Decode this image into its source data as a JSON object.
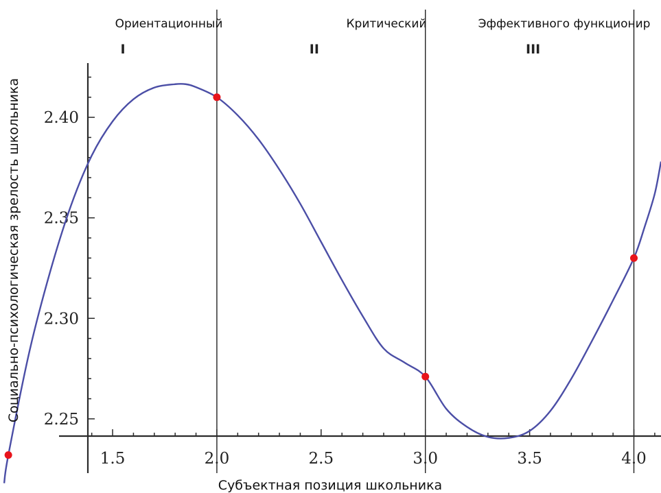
{
  "chart_data": {
    "type": "line",
    "title": "",
    "xlabel": "Субъектная позиция школьника",
    "ylabel": "Социально-психологическая зрелость школьника",
    "xlim": [
      0.96,
      4.13
    ],
    "ylim": [
      2.223,
      2.442
    ],
    "x_ticks": [
      1.5,
      2.0,
      2.5,
      3.0,
      3.5,
      4.0
    ],
    "x_tick_labels": [
      "1.5",
      "2.0",
      "2.5",
      "3.0",
      "3.5",
      "4.0"
    ],
    "y_ticks": [
      2.25,
      2.3,
      2.35,
      2.4
    ],
    "y_tick_labels": [
      "2.25",
      "2.30",
      "2.35",
      "2.40"
    ],
    "grid": false,
    "curve_color": "#4b4ea6",
    "point_color": "#e8141b",
    "series": [
      {
        "curve": {
          "x": [
            0.98,
            1.0,
            1.1,
            1.2,
            1.3,
            1.4,
            1.5,
            1.6,
            1.7,
            1.8,
            1.85,
            1.9,
            2.0,
            2.1,
            2.2,
            2.3,
            2.4,
            2.5,
            2.6,
            2.7,
            2.8,
            2.9,
            3.0,
            3.1,
            3.2,
            3.3,
            3.4,
            3.5,
            3.6,
            3.7,
            3.8,
            3.9,
            4.0,
            4.05,
            4.1,
            4.13
          ],
          "y": [
            2.218,
            2.232,
            2.283,
            2.323,
            2.356,
            2.381,
            2.398,
            2.409,
            2.4148,
            2.4165,
            2.4165,
            2.415,
            2.41,
            2.401,
            2.389,
            2.374,
            2.357,
            2.338,
            2.319,
            2.301,
            2.285,
            2.278,
            2.271,
            2.255,
            2.246,
            2.241,
            2.2405,
            2.244,
            2.254,
            2.27,
            2.289,
            2.309,
            2.33,
            2.345,
            2.362,
            2.378
          ]
        },
        "points": {
          "x": [
            1.0,
            2.0,
            3.0,
            4.0
          ],
          "y": [
            2.232,
            2.41,
            2.271,
            2.33
          ]
        }
      }
    ],
    "dividers": [
      2.0,
      3.0,
      4.0
    ],
    "zones": [
      {
        "name": "Ориентационный",
        "numeral": "I",
        "from": 1.0,
        "to": 2.0
      },
      {
        "name": "Критический",
        "numeral": "II",
        "from": 2.0,
        "to": 3.0
      },
      {
        "name": "Эффективного функционир",
        "numeral": "III",
        "from": 3.0,
        "to": 4.0
      }
    ]
  }
}
